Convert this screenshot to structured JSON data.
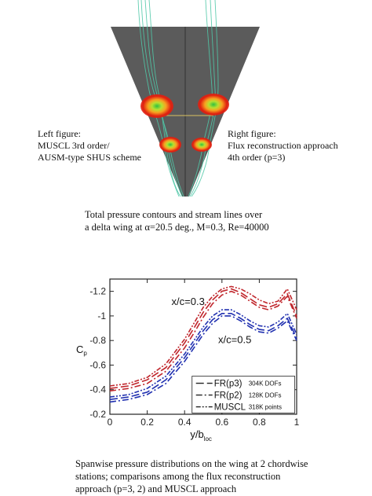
{
  "figure_top": {
    "left_label": [
      "Left figure:",
      "MUSCL 3rd order/",
      "AUSM-type SHUS scheme"
    ],
    "right_label": [
      "Right figure:",
      "Flux reconstruction approach",
      "4th order (p=3)"
    ],
    "caption": [
      "Total pressure contours and stream lines over",
      "a delta wing at α=20.5 deg., M=0.3, Re=40000"
    ],
    "colors": {
      "wing": "#5a5a5a",
      "vortex_outer": "#e02010",
      "vortex_mid": "#f8a020",
      "vortex_core": "#30c040",
      "streamline": "#50c8a8"
    }
  },
  "chart_data": {
    "type": "line",
    "xlabel": "y/b",
    "xlabel_sub": "loc",
    "ylabel": "C",
    "ylabel_sub": "p",
    "xlim": [
      0,
      1
    ],
    "ylim": [
      -0.2,
      -1.3
    ],
    "y_inverted": true,
    "xticks": [
      "0",
      "0.2",
      "0.4",
      "0.6",
      "0.8",
      "1"
    ],
    "yticks": [
      "-0.2",
      "-0.4",
      "-0.6",
      "-0.8",
      "-1",
      "-1.2"
    ],
    "annotations": [
      {
        "text": "x/c=0.3",
        "color": "#c0262c"
      },
      {
        "text": "x/c=0.5",
        "color": "#2030b0"
      }
    ],
    "legend": [
      {
        "main": "FR(p3)",
        "small": "304K DOFs",
        "dash": "10,4"
      },
      {
        "main": "FR(p2)",
        "small": "128K DOFs",
        "dash": "8,3,2,3"
      },
      {
        "main": "MUSCL",
        "small": "318K points",
        "dash": "6,2,2,2,2,2"
      }
    ],
    "series": [
      {
        "station": "x/c=0.3",
        "method": "FR(p3)",
        "color": "#c0262c",
        "x": [
          0.0,
          0.1,
          0.2,
          0.3,
          0.4,
          0.45,
          0.5,
          0.55,
          0.6,
          0.65,
          0.7,
          0.75,
          0.8,
          0.85,
          0.9,
          0.95,
          1.0
        ],
        "y": [
          -0.41,
          -0.43,
          -0.48,
          -0.58,
          -0.78,
          -0.9,
          -1.03,
          -1.13,
          -1.2,
          -1.22,
          -1.19,
          -1.14,
          -1.09,
          -1.07,
          -1.1,
          -1.18,
          -1.0
        ]
      },
      {
        "station": "x/c=0.3",
        "method": "FR(p2)",
        "color": "#c0262c",
        "x": [
          0.0,
          0.1,
          0.2,
          0.3,
          0.4,
          0.45,
          0.5,
          0.55,
          0.6,
          0.65,
          0.7,
          0.75,
          0.8,
          0.85,
          0.9,
          0.95,
          1.0
        ],
        "y": [
          -0.39,
          -0.41,
          -0.45,
          -0.55,
          -0.74,
          -0.86,
          -0.99,
          -1.1,
          -1.17,
          -1.2,
          -1.17,
          -1.12,
          -1.07,
          -1.05,
          -1.08,
          -1.16,
          -0.98
        ]
      },
      {
        "station": "x/c=0.3",
        "method": "MUSCL",
        "color": "#c0262c",
        "x": [
          0.0,
          0.1,
          0.2,
          0.3,
          0.4,
          0.45,
          0.5,
          0.55,
          0.6,
          0.65,
          0.7,
          0.75,
          0.8,
          0.85,
          0.9,
          0.95,
          1.0
        ],
        "y": [
          -0.43,
          -0.45,
          -0.5,
          -0.61,
          -0.81,
          -0.94,
          -1.07,
          -1.16,
          -1.22,
          -1.24,
          -1.22,
          -1.18,
          -1.13,
          -1.1,
          -1.12,
          -1.22,
          -1.05
        ]
      },
      {
        "station": "x/c=0.5",
        "method": "FR(p3)",
        "color": "#2030b0",
        "x": [
          0.0,
          0.1,
          0.2,
          0.3,
          0.4,
          0.45,
          0.5,
          0.55,
          0.6,
          0.65,
          0.7,
          0.75,
          0.8,
          0.85,
          0.9,
          0.95,
          1.0
        ],
        "y": [
          -0.32,
          -0.34,
          -0.38,
          -0.48,
          -0.66,
          -0.77,
          -0.88,
          -0.97,
          -1.02,
          -1.02,
          -0.98,
          -0.93,
          -0.89,
          -0.88,
          -0.92,
          -0.98,
          -0.82
        ]
      },
      {
        "station": "x/c=0.5",
        "method": "FR(p2)",
        "color": "#2030b0",
        "x": [
          0.0,
          0.1,
          0.2,
          0.3,
          0.4,
          0.45,
          0.5,
          0.55,
          0.6,
          0.65,
          0.7,
          0.75,
          0.8,
          0.85,
          0.9,
          0.95,
          1.0
        ],
        "y": [
          -0.3,
          -0.32,
          -0.36,
          -0.45,
          -0.63,
          -0.74,
          -0.85,
          -0.94,
          -1.0,
          -1.0,
          -0.96,
          -0.91,
          -0.87,
          -0.86,
          -0.9,
          -0.96,
          -0.8
        ]
      },
      {
        "station": "x/c=0.5",
        "method": "MUSCL",
        "color": "#2030b0",
        "x": [
          0.0,
          0.1,
          0.2,
          0.3,
          0.4,
          0.45,
          0.5,
          0.55,
          0.6,
          0.65,
          0.7,
          0.75,
          0.8,
          0.85,
          0.9,
          0.95,
          1.0
        ],
        "y": [
          -0.34,
          -0.36,
          -0.41,
          -0.51,
          -0.69,
          -0.8,
          -0.91,
          -1.0,
          -1.05,
          -1.05,
          -1.01,
          -0.96,
          -0.92,
          -0.91,
          -0.95,
          -1.02,
          -0.85
        ]
      }
    ]
  },
  "bottom_caption": [
    "Spanwise pressure distributions on the wing at 2 chordwise",
    "stations; comparisons among the flux reconstruction",
    "approach (p=3, 2) and MUSCL approach"
  ]
}
